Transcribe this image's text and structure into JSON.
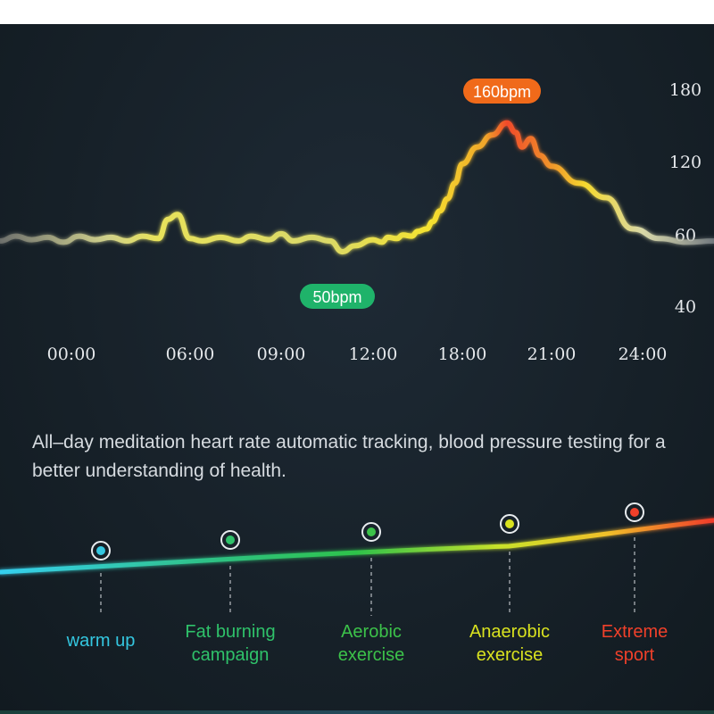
{
  "chart_data": {
    "type": "line",
    "y_ticks": [
      "180",
      "120",
      "60",
      "40"
    ],
    "x_ticks": [
      "00:00",
      "06:00",
      "09:00",
      "12:00",
      "18:00",
      "21:00",
      "24:00"
    ],
    "annotations": {
      "max": {
        "label": "160bpm",
        "value": 160,
        "color": "#f06a1a"
      },
      "min": {
        "label": "50bpm",
        "value": 50,
        "color": "#1fb36a"
      }
    },
    "series": [
      {
        "x": [
          0,
          0.5,
          1,
          1.5,
          2,
          2.5,
          3,
          3.5,
          4,
          4.5,
          5,
          5.3,
          5.6,
          6,
          6.4,
          7,
          7.6,
          8,
          8.6,
          9,
          9.4,
          10,
          10.6,
          11,
          11.4,
          12,
          12.6,
          13,
          13.6,
          14,
          14.6,
          15,
          15.6,
          16,
          16.5,
          17,
          17.5,
          18,
          18.5,
          19,
          19.5,
          19.8,
          20,
          20.3,
          20.6,
          21,
          21.5,
          22,
          22.5,
          23,
          23.5,
          24
        ],
        "y": [
          60,
          64,
          61,
          63,
          59,
          64,
          61,
          63,
          60,
          64,
          62,
          78,
          82,
          62,
          60,
          63,
          60,
          64,
          61,
          66,
          60,
          63,
          60,
          51,
          56,
          61,
          59,
          63,
          62,
          65,
          64,
          68,
          70,
          76,
          85,
          95,
          108,
          124,
          138,
          148,
          158,
          150,
          138,
          145,
          131,
          122,
          108,
          96,
          70,
          62,
          59,
          60
        ]
      }
    ]
  },
  "caption": "All–day meditation heart rate automatic tracking, blood pressure testing for a better understanding of health.",
  "zones": [
    {
      "label": [
        "warm up"
      ],
      "color": "#34c7e0"
    },
    {
      "label": [
        "Fat burning",
        "campaign"
      ],
      "color": "#2fc26a"
    },
    {
      "label": [
        "Aerobic",
        "exercise"
      ],
      "color": "#3cc24a"
    },
    {
      "label": [
        "Anaerobic",
        "exercise"
      ],
      "color": "#d9e21f"
    },
    {
      "label": [
        "Extreme",
        "sport"
      ],
      "color": "#f0402a"
    }
  ]
}
